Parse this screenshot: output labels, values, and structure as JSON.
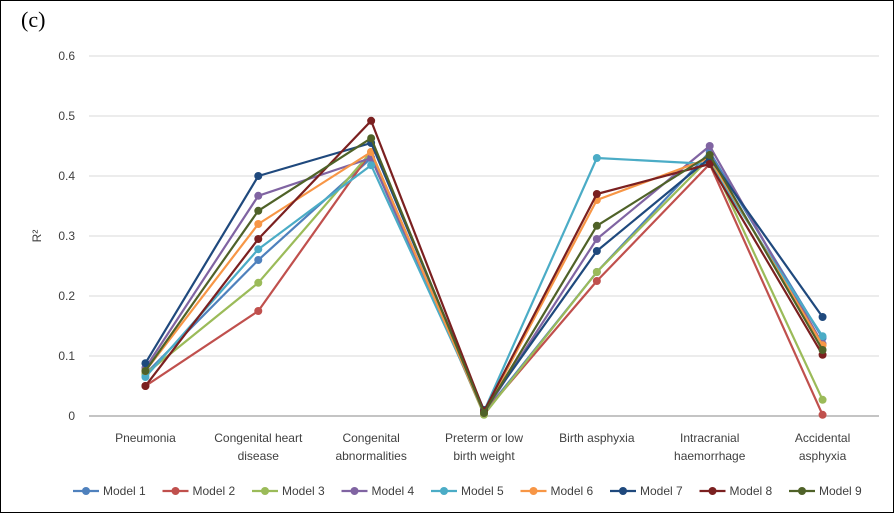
{
  "panel_label": "(c)",
  "chart_data": {
    "type": "line",
    "title": "",
    "xlabel": "",
    "ylabel": "R²",
    "ylim": [
      0,
      0.6
    ],
    "yticks": [
      "0",
      "0.1",
      "0.2",
      "0.3",
      "0.4",
      "0.5",
      "0.6"
    ],
    "grid": true,
    "legend_position": "bottom",
    "categories": [
      [
        "Pneumonia"
      ],
      [
        "Congenital heart",
        "disease"
      ],
      [
        "Congenital",
        "abnormalities"
      ],
      [
        "Preterm or low",
        "birth weight"
      ],
      [
        "Birth asphyxia"
      ],
      [
        "Intracranial",
        "haemorrhage"
      ],
      [
        "Accidental",
        "asphyxia"
      ]
    ],
    "series": [
      {
        "name": "Model 1",
        "color": "#4F81BD",
        "values": [
          0.07,
          0.26,
          0.43,
          0.005,
          0.24,
          0.44,
          0.13
        ]
      },
      {
        "name": "Model 2",
        "color": "#C0504D",
        "values": [
          0.05,
          0.175,
          0.44,
          0.005,
          0.225,
          0.42,
          0.002
        ]
      },
      {
        "name": "Model 3",
        "color": "#9BBB59",
        "values": [
          0.07,
          0.222,
          0.44,
          0.002,
          0.24,
          0.43,
          0.027
        ]
      },
      {
        "name": "Model 4",
        "color": "#8064A2",
        "values": [
          0.08,
          0.367,
          0.43,
          0.005,
          0.295,
          0.45,
          0.12
        ]
      },
      {
        "name": "Model 5",
        "color": "#4BACC6",
        "values": [
          0.065,
          0.278,
          0.418,
          0.008,
          0.43,
          0.42,
          0.133
        ]
      },
      {
        "name": "Model 6",
        "color": "#F79646",
        "values": [
          0.075,
          0.32,
          0.44,
          0.005,
          0.36,
          0.43,
          0.118
        ]
      },
      {
        "name": "Model 7",
        "color": "#1F497D",
        "values": [
          0.088,
          0.4,
          0.455,
          0.01,
          0.275,
          0.43,
          0.165
        ]
      },
      {
        "name": "Model 8",
        "color": "#7B2020",
        "values": [
          0.05,
          0.295,
          0.492,
          0.008,
          0.37,
          0.42,
          0.102
        ]
      },
      {
        "name": "Model 9",
        "color": "#4F6228",
        "values": [
          0.075,
          0.342,
          0.463,
          0.005,
          0.317,
          0.435,
          0.11
        ]
      }
    ]
  }
}
